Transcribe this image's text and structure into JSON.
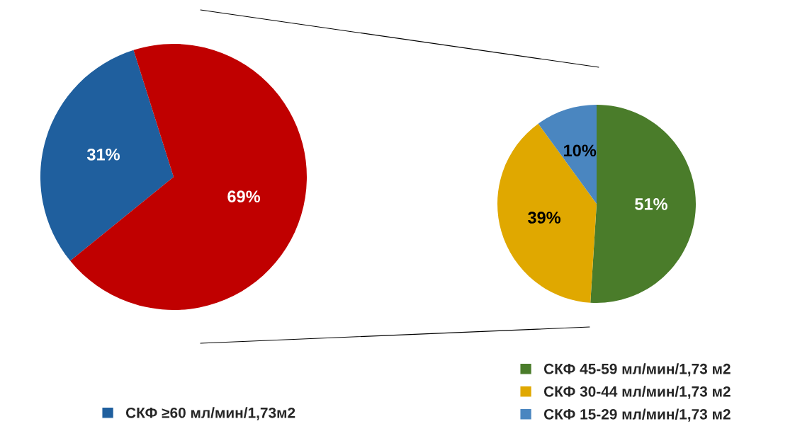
{
  "chart_data": [
    {
      "type": "pie",
      "categories": [
        "СКФ ≥60 мл/мин/1,73м2",
        null
      ],
      "values": [
        31,
        69
      ],
      "colors": [
        "#1f5f9e",
        "#c00000"
      ],
      "data_labels": true,
      "value_labels": [
        "31%",
        "69%"
      ],
      "legend": "bottom"
    },
    {
      "type": "pie",
      "categories": [
        "СКФ 45-59 мл/мин/1,73 м2",
        "СКФ 30-44 мл/мин/1,73 м2",
        "СКФ 15-29 мл/мин/1,73 м2"
      ],
      "values": [
        51,
        39,
        10
      ],
      "colors": [
        "#4a7c2a",
        "#e0a800",
        "#4a86c0"
      ],
      "data_labels": true,
      "value_labels": [
        "51%",
        "39%",
        "10%"
      ],
      "legend": "bottom right"
    }
  ]
}
